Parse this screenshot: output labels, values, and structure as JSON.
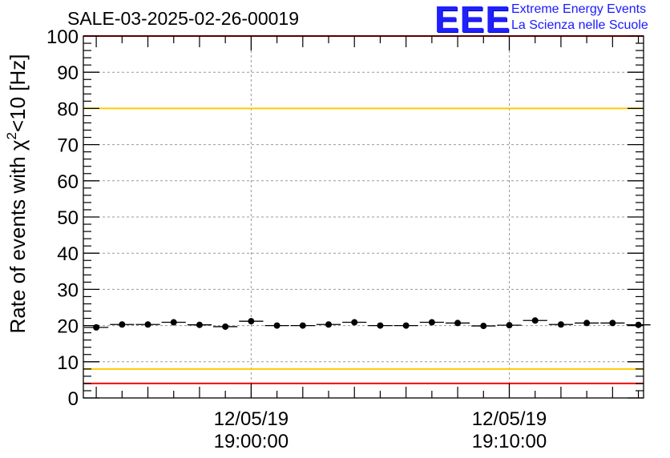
{
  "title": "SALE-03-2025-02-26-00019",
  "logo": {
    "mark": "EEE",
    "line1": "Extreme Energy Events",
    "line2": "La Scienza nelle Scuole"
  },
  "chart_data": {
    "type": "scatter",
    "title": "SALE-03-2025-02-26-00019",
    "ylabel_main": "Rate of events with χ",
    "ylabel_sup": "2",
    "ylabel_tail": "<10 [Hz]",
    "ylim": [
      0,
      100
    ],
    "yticks": [
      0,
      10,
      20,
      30,
      40,
      50,
      60,
      70,
      80,
      90,
      100
    ],
    "xlim_minutes": [
      -6.5,
      15.2
    ],
    "xticks": [
      {
        "minute": 0,
        "date": "12/05/19",
        "time": "19:00:00"
      },
      {
        "minute": 10,
        "date": "12/05/19",
        "time": "19:10:00"
      }
    ],
    "grid": true,
    "points": {
      "x_minutes": [
        -6,
        -5,
        -4,
        -3,
        -2,
        -1,
        0,
        1,
        2,
        3,
        4,
        5,
        6,
        7,
        8,
        9,
        10,
        11,
        12,
        13,
        14,
        15
      ],
      "y": [
        19.5,
        20.3,
        20.3,
        20.9,
        20.2,
        19.7,
        21.2,
        20.0,
        20.0,
        20.3,
        20.9,
        20.0,
        20.0,
        20.9,
        20.7,
        19.9,
        20.1,
        21.4,
        20.3,
        20.7,
        20.7,
        20.2
      ],
      "bin_width_minutes": 1
    },
    "reference_lines": [
      {
        "y": 100,
        "color": "#ff0000"
      },
      {
        "y": 80,
        "color": "#ffcc00"
      },
      {
        "y": 8,
        "color": "#ffcc00"
      },
      {
        "y": 4,
        "color": "#ff0000"
      }
    ]
  }
}
